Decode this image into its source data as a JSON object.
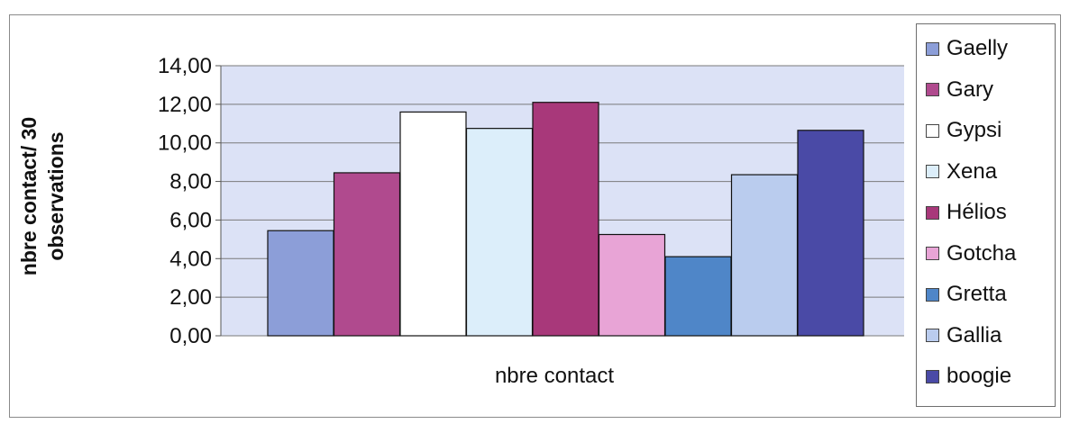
{
  "chart_data": {
    "type": "bar",
    "categories": [
      "nbre contact"
    ],
    "series": [
      {
        "name": "Gaelly",
        "values": [
          5.45
        ],
        "color": "#8C9ED8"
      },
      {
        "name": "Gary",
        "values": [
          8.45
        ],
        "color": "#B04A8E"
      },
      {
        "name": "Gypsi",
        "values": [
          11.6
        ],
        "color": "#FFFFFF"
      },
      {
        "name": "Xena",
        "values": [
          10.75
        ],
        "color": "#DCEEFA"
      },
      {
        "name": "Hélios",
        "values": [
          12.1
        ],
        "color": "#A8387A"
      },
      {
        "name": "Gotcha",
        "values": [
          5.25
        ],
        "color": "#E8A4D6"
      },
      {
        "name": "Gretta",
        "values": [
          4.1
        ],
        "color": "#4F86C8"
      },
      {
        "name": "Gallia",
        "values": [
          8.35
        ],
        "color": "#BACCEE"
      },
      {
        "name": "boogie",
        "values": [
          10.65
        ],
        "color": "#4A4AA6"
      }
    ],
    "xlabel": "nbre contact",
    "ylabel_lines": [
      "nbre contact/ 30",
      "observations"
    ],
    "ylim": [
      0,
      14
    ],
    "yticks": [
      "0,00",
      "2,00",
      "4,00",
      "6,00",
      "8,00",
      "10,00",
      "12,00",
      "14,00"
    ],
    "grid": true,
    "legend_position": "right",
    "plot_background": "#DCE2F6"
  }
}
